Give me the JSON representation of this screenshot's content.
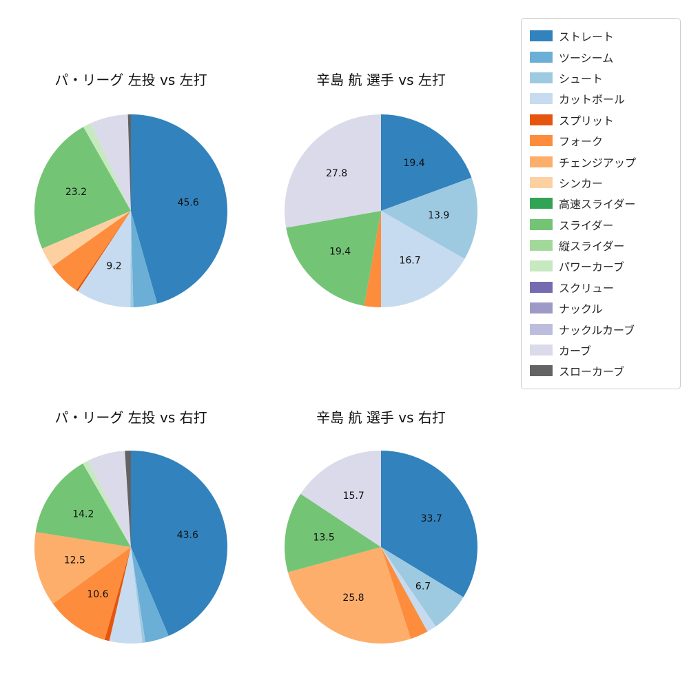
{
  "figure": {
    "background": "#ffffff"
  },
  "chart_data": {
    "type": "pie",
    "unit": "percent",
    "layout": {
      "rows": 2,
      "cols": 2,
      "start_angle": "top",
      "direction": "clockwise",
      "legend_position": "upper right",
      "pct_label_distance": 0.6,
      "grid": false
    },
    "legend": [
      {
        "label": "ストレート",
        "color": "#3182bd"
      },
      {
        "label": "ツーシーム",
        "color": "#6baed6"
      },
      {
        "label": "シュート",
        "color": "#9ecae1"
      },
      {
        "label": "カットボール",
        "color": "#c6dbef"
      },
      {
        "label": "スプリット",
        "color": "#e6550d"
      },
      {
        "label": "フォーク",
        "color": "#fd8d3c"
      },
      {
        "label": "チェンジアップ",
        "color": "#fdae6b"
      },
      {
        "label": "シンカー",
        "color": "#fdd0a2"
      },
      {
        "label": "高速スライダー",
        "color": "#31a354"
      },
      {
        "label": "スライダー",
        "color": "#74c476"
      },
      {
        "label": "縦スライダー",
        "color": "#a1d99b"
      },
      {
        "label": "パワーカーブ",
        "color": "#c7e9c0"
      },
      {
        "label": "スクリュー",
        "color": "#756bb1"
      },
      {
        "label": "ナックル",
        "color": "#9e9ac8"
      },
      {
        "label": "ナックルカーブ",
        "color": "#bcbddc"
      },
      {
        "label": "カーブ",
        "color": "#dadaeb"
      },
      {
        "label": "スローカーブ",
        "color": "#636363"
      }
    ],
    "charts": [
      {
        "title": "パ・リーグ 左投 vs 左打",
        "slices": [
          {
            "name": "ストレート",
            "value": 45.6,
            "label": "45.6"
          },
          {
            "name": "ツーシーム",
            "value": 4.0,
            "label": ""
          },
          {
            "name": "シュート",
            "value": 0.5,
            "label": ""
          },
          {
            "name": "カットボール",
            "value": 9.2,
            "label": "9.2"
          },
          {
            "name": "スプリット",
            "value": 0.3,
            "label": ""
          },
          {
            "name": "フォーク",
            "value": 5.6,
            "label": ""
          },
          {
            "name": "シンカー",
            "value": 3.4,
            "label": ""
          },
          {
            "name": "スライダー",
            "value": 23.2,
            "label": "23.2"
          },
          {
            "name": "パワーカーブ",
            "value": 1.4,
            "label": ""
          },
          {
            "name": "カーブ",
            "value": 6.3,
            "label": ""
          },
          {
            "name": "スローカーブ",
            "value": 0.5,
            "label": ""
          }
        ]
      },
      {
        "title": "辛島 航 選手 vs 左打",
        "slices": [
          {
            "name": "ストレート",
            "value": 19.4,
            "label": "19.4"
          },
          {
            "name": "シュート",
            "value": 13.9,
            "label": "13.9"
          },
          {
            "name": "カットボール",
            "value": 16.7,
            "label": "16.7"
          },
          {
            "name": "フォーク",
            "value": 2.8,
            "label": ""
          },
          {
            "name": "スライダー",
            "value": 19.4,
            "label": "19.4"
          },
          {
            "name": "カーブ",
            "value": 27.8,
            "label": "27.8"
          }
        ]
      },
      {
        "title": "パ・リーグ 左投 vs 右打",
        "slices": [
          {
            "name": "ストレート",
            "value": 43.6,
            "label": "43.6"
          },
          {
            "name": "ツーシーム",
            "value": 4.0,
            "label": ""
          },
          {
            "name": "シュート",
            "value": 0.5,
            "label": ""
          },
          {
            "name": "カットボール",
            "value": 5.5,
            "label": ""
          },
          {
            "name": "スプリット",
            "value": 0.8,
            "label": ""
          },
          {
            "name": "フォーク",
            "value": 10.6,
            "label": "10.6"
          },
          {
            "name": "チェンジアップ",
            "value": 12.5,
            "label": "12.5"
          },
          {
            "name": "スライダー",
            "value": 14.2,
            "label": "14.2"
          },
          {
            "name": "パワーカーブ",
            "value": 1.0,
            "label": ""
          },
          {
            "name": "カーブ",
            "value": 6.3,
            "label": ""
          },
          {
            "name": "スローカーブ",
            "value": 1.0,
            "label": ""
          }
        ]
      },
      {
        "title": "辛島 航 選手 vs 右打",
        "slices": [
          {
            "name": "ストレート",
            "value": 33.7,
            "label": "33.7"
          },
          {
            "name": "シュート",
            "value": 6.7,
            "label": "6.7"
          },
          {
            "name": "カットボール",
            "value": 1.6,
            "label": ""
          },
          {
            "name": "フォーク",
            "value": 3.0,
            "label": ""
          },
          {
            "name": "チェンジアップ",
            "value": 25.8,
            "label": "25.8"
          },
          {
            "name": "スライダー",
            "value": 13.5,
            "label": "13.5"
          },
          {
            "name": "カーブ",
            "value": 15.7,
            "label": "15.7"
          }
        ]
      }
    ]
  }
}
